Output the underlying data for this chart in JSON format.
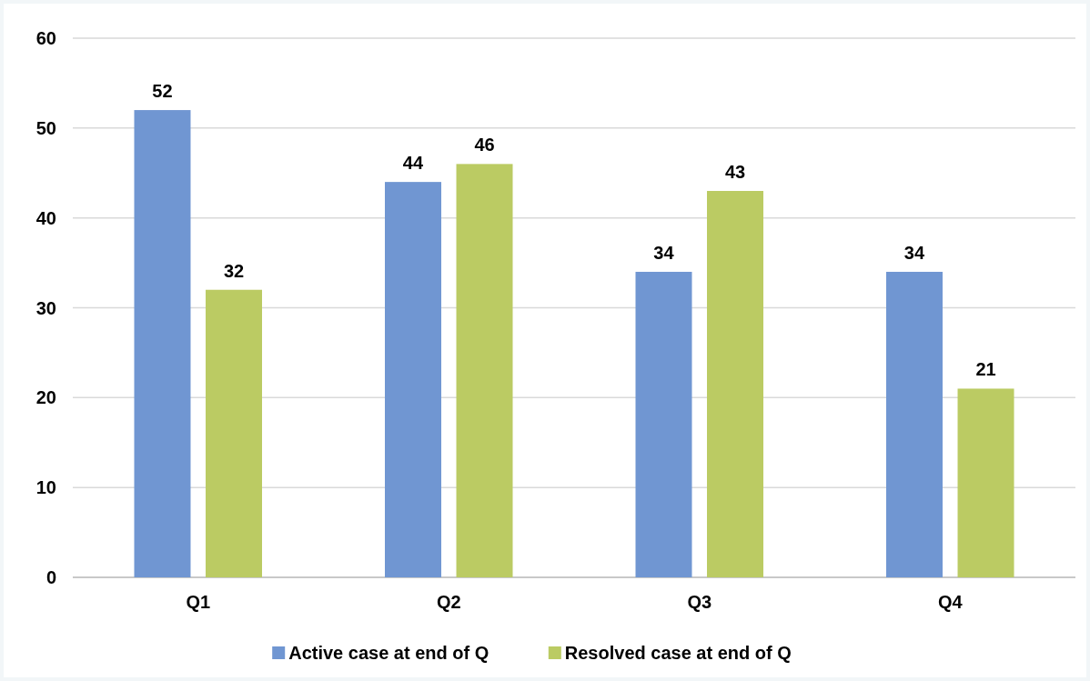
{
  "chart_data": {
    "type": "bar",
    "categories": [
      "Q1",
      "Q2",
      "Q3",
      "Q4"
    ],
    "series": [
      {
        "name": "Active case at end of Q",
        "color": "#7096d2",
        "values": [
          52,
          44,
          34,
          34
        ]
      },
      {
        "name": "Resolved case at end of Q",
        "color": "#bbcb63",
        "values": [
          32,
          46,
          43,
          21
        ]
      }
    ],
    "ylim": [
      0,
      60
    ],
    "yticks": [
      0,
      10,
      20,
      30,
      40,
      50,
      60
    ],
    "grid": "y",
    "legend": "bottom",
    "data_labels": true
  }
}
